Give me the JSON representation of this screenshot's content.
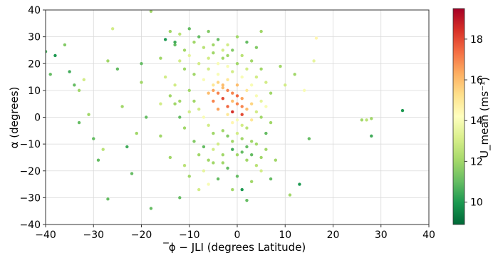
{
  "chart_data": {
    "type": "scatter",
    "xlabel": "̅ϕ − JLI (degrees Latitude)",
    "ylabel": "α (degrees)",
    "colorbar_label": "U_mean (ms⁻¹)",
    "xlim": [
      -40,
      40
    ],
    "ylim": [
      -40,
      40
    ],
    "x_ticks": [
      -40,
      -30,
      -20,
      -10,
      0,
      10,
      20,
      30,
      40
    ],
    "y_ticks": [
      -40,
      -30,
      -20,
      -10,
      0,
      10,
      20,
      30,
      40
    ],
    "x_tick_labels": [
      "−40",
      "−30",
      "−20",
      "−10",
      "0",
      "10",
      "20",
      "30",
      "40"
    ],
    "y_tick_labels": [
      "−40",
      "−30",
      "−20",
      "−10",
      "0",
      "10",
      "20",
      "30",
      "40"
    ],
    "grid": true,
    "colormap": "RdYlGn_r",
    "color_range": [
      8.9,
      19.5
    ],
    "colorbar_ticks": [
      10,
      12,
      14,
      16,
      18
    ],
    "points": [
      [
        -40,
        24.5,
        10.5
      ],
      [
        -39,
        16,
        11
      ],
      [
        -38,
        23,
        10
      ],
      [
        -36,
        27,
        11.5
      ],
      [
        -35,
        17,
        10.5
      ],
      [
        -34,
        12,
        11
      ],
      [
        -33,
        10,
        12
      ],
      [
        -32,
        14,
        13
      ],
      [
        -33,
        -2,
        11
      ],
      [
        -31,
        1,
        12
      ],
      [
        -30,
        -8,
        11
      ],
      [
        -29,
        -16,
        11
      ],
      [
        -28,
        -12,
        12.5
      ],
      [
        -27,
        -30.5,
        11
      ],
      [
        -27,
        21,
        12
      ],
      [
        -26,
        33,
        13
      ],
      [
        -25,
        18,
        11
      ],
      [
        -24,
        4,
        12
      ],
      [
        -23,
        -11,
        10.5
      ],
      [
        -22,
        -21,
        11
      ],
      [
        -21,
        -6,
        12
      ],
      [
        -20,
        20,
        11
      ],
      [
        -20,
        13,
        12
      ],
      [
        -19,
        0,
        11
      ],
      [
        -18,
        39.5,
        12
      ],
      [
        -18,
        -34,
        11
      ],
      [
        -16,
        5,
        13
      ],
      [
        -16,
        -7,
        12
      ],
      [
        -15,
        29,
        10
      ],
      [
        -14,
        -15,
        12
      ],
      [
        -13,
        28,
        10.5
      ],
      [
        -12,
        -30,
        11
      ],
      [
        -11,
        -18,
        12.5
      ],
      [
        -10,
        10,
        12
      ],
      [
        -10,
        -22,
        12
      ],
      [
        -9,
        -9,
        11.5
      ],
      [
        -8,
        -27,
        13
      ],
      [
        -7,
        -20,
        13.5
      ],
      [
        -6,
        -25,
        14
      ],
      [
        -5,
        -17,
        12
      ],
      [
        -4,
        -23,
        11
      ],
      [
        -3,
        -14,
        12
      ],
      [
        -2,
        -19,
        11
      ],
      [
        -1,
        -27,
        12
      ],
      [
        0,
        -22,
        11
      ],
      [
        1,
        -27,
        10
      ],
      [
        2,
        -31,
        11
      ],
      [
        3,
        -24,
        12
      ],
      [
        4,
        -18,
        12.5
      ],
      [
        5,
        -20,
        13
      ],
      [
        6,
        -12,
        12
      ],
      [
        7,
        -23,
        11
      ],
      [
        8,
        -16,
        12
      ],
      [
        9,
        19,
        12
      ],
      [
        10,
        12,
        13
      ],
      [
        11,
        -29,
        12
      ],
      [
        12,
        16,
        12
      ],
      [
        13,
        -25,
        10
      ],
      [
        14,
        10,
        14
      ],
      [
        15,
        -8,
        11
      ],
      [
        16,
        21,
        13.5
      ],
      [
        16.5,
        29.5,
        14.5
      ],
      [
        26,
        -1,
        12
      ],
      [
        27,
        -1,
        12.5
      ],
      [
        28,
        -0.5,
        12
      ],
      [
        28,
        -7,
        10.5
      ],
      [
        34.5,
        2.5,
        10
      ],
      [
        -14,
        32,
        12
      ],
      [
        -13,
        27,
        11
      ],
      [
        -12,
        31,
        12.5
      ],
      [
        -11,
        25,
        12
      ],
      [
        -10,
        33,
        11
      ],
      [
        -9,
        28,
        12
      ],
      [
        -8,
        30,
        11
      ],
      [
        -7,
        26,
        12.5
      ],
      [
        -6,
        32,
        11.5
      ],
      [
        -5,
        24,
        12
      ],
      [
        -4,
        29,
        11
      ],
      [
        -3,
        22,
        12
      ],
      [
        -2,
        27,
        13
      ],
      [
        -1,
        25,
        11.5
      ],
      [
        0,
        30,
        12
      ],
      [
        1,
        23,
        12.5
      ],
      [
        2,
        28,
        11
      ],
      [
        3,
        21,
        12
      ],
      [
        4,
        26,
        11.5
      ],
      [
        5,
        32,
        12
      ],
      [
        -12,
        21,
        13
      ],
      [
        -11,
        18,
        12
      ],
      [
        -10,
        23,
        13.5
      ],
      [
        -9,
        16,
        12
      ],
      [
        -8,
        20,
        13
      ],
      [
        -7,
        14,
        14
      ],
      [
        -6,
        18,
        13
      ],
      [
        -5,
        12,
        15
      ],
      [
        -4,
        16,
        14
      ],
      [
        -3,
        11,
        16
      ],
      [
        -2,
        14,
        15
      ],
      [
        -1,
        9,
        17
      ],
      [
        0,
        12,
        16
      ],
      [
        1,
        7,
        16.5
      ],
      [
        2,
        10,
        15
      ],
      [
        3,
        5,
        15.5
      ],
      [
        4,
        8,
        14
      ],
      [
        -6,
        9,
        16
      ],
      [
        -5,
        6,
        17
      ],
      [
        -4,
        3,
        16.5
      ],
      [
        -3,
        7,
        18
      ],
      [
        -2,
        4,
        17.5
      ],
      [
        -1,
        2,
        18.5
      ],
      [
        0,
        5,
        17
      ],
      [
        1,
        1,
        18
      ],
      [
        2,
        3,
        16
      ],
      [
        3,
        -1,
        15
      ],
      [
        -5,
        10,
        16.5
      ],
      [
        -4,
        9,
        17
      ],
      [
        -3,
        12,
        16
      ],
      [
        -2,
        10,
        17
      ],
      [
        -1,
        6,
        16
      ],
      [
        0,
        8,
        17.5
      ],
      [
        1,
        4,
        17
      ],
      [
        -4,
        13,
        15.5
      ],
      [
        -2,
        1,
        15
      ],
      [
        -1,
        -2,
        14.5
      ],
      [
        0,
        -1,
        14
      ],
      [
        1,
        -3,
        13
      ],
      [
        2,
        -4,
        12.5
      ],
      [
        -3,
        -5,
        12
      ],
      [
        -2,
        -7,
        11.5
      ],
      [
        -1,
        -9,
        12
      ],
      [
        0,
        -6,
        13
      ],
      [
        1,
        -8,
        12
      ],
      [
        2,
        -11,
        11
      ],
      [
        -1,
        -12,
        10.5
      ],
      [
        0,
        -14,
        12
      ],
      [
        1,
        -13,
        11
      ],
      [
        3,
        -9,
        12
      ],
      [
        -4,
        -10,
        13
      ],
      [
        -5,
        -6,
        12
      ],
      [
        -6,
        -3,
        13
      ],
      [
        -7,
        0,
        14
      ],
      [
        -8,
        3,
        13
      ],
      [
        -9,
        6,
        12
      ],
      [
        -10,
        2,
        13
      ],
      [
        -11,
        -4,
        12
      ],
      [
        -12,
        0,
        11
      ],
      [
        -13,
        5,
        12
      ],
      [
        4,
        2,
        13
      ],
      [
        5,
        0,
        12
      ],
      [
        6,
        4,
        14
      ],
      [
        7,
        -2,
        12
      ],
      [
        5,
        6,
        13.5
      ],
      [
        3,
        12,
        14
      ],
      [
        4,
        15,
        13
      ],
      [
        5,
        18,
        12
      ],
      [
        6,
        13,
        13
      ],
      [
        7,
        9,
        12
      ],
      [
        -16,
        22,
        12
      ],
      [
        -15,
        15,
        13
      ],
      [
        -14,
        8,
        12
      ],
      [
        -13,
        12,
        13
      ],
      [
        -12,
        6,
        12
      ],
      [
        -8,
        -14,
        12
      ],
      [
        -7,
        -11,
        11
      ],
      [
        -6,
        -16,
        12
      ],
      [
        -5,
        -12,
        13
      ],
      [
        -3,
        -17,
        12
      ],
      [
        2,
        -16,
        12
      ],
      [
        3,
        -14,
        11
      ],
      [
        4,
        -10,
        12
      ],
      [
        5,
        -15,
        12
      ],
      [
        6,
        -6,
        11
      ],
      [
        -2,
        19,
        14
      ],
      [
        -1,
        17,
        13
      ],
      [
        0,
        20,
        12
      ],
      [
        1,
        15,
        14
      ],
      [
        2,
        18,
        13
      ],
      [
        -6,
        22,
        13
      ],
      [
        -5,
        27,
        12
      ],
      [
        -4,
        20,
        14
      ],
      [
        -3,
        25,
        13
      ],
      [
        -2,
        23,
        12
      ]
    ]
  }
}
